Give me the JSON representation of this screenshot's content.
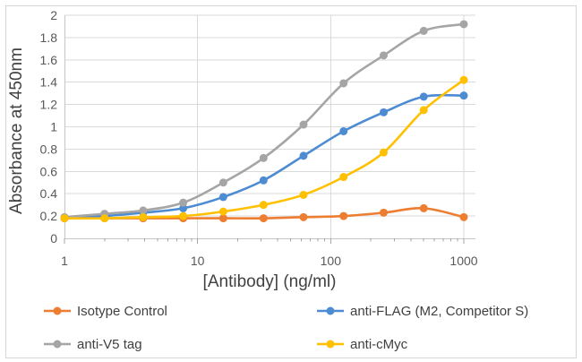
{
  "chart_data": {
    "type": "line",
    "title": "",
    "xlabel": "[Antibody] (ng/ml)",
    "ylabel": "Absorbance at 450nm",
    "x_scale": "log",
    "xlim": [
      1,
      1000
    ],
    "ylim": [
      0,
      2
    ],
    "grid": true,
    "legend_position": "bottom",
    "x_ticks": [
      {
        "value": 1,
        "label": "1"
      },
      {
        "value": 10,
        "label": "10"
      },
      {
        "value": 100,
        "label": "100"
      },
      {
        "value": 1000,
        "label": "1000"
      }
    ],
    "y_ticks": [
      {
        "value": 0,
        "label": "0"
      },
      {
        "value": 0.2,
        "label": "0.2"
      },
      {
        "value": 0.4,
        "label": "0.4"
      },
      {
        "value": 0.6,
        "label": "0.6"
      },
      {
        "value": 0.8,
        "label": "0.8"
      },
      {
        "value": 1,
        "label": "1"
      },
      {
        "value": 1.2,
        "label": "1.2"
      },
      {
        "value": 1.4,
        "label": "1.4"
      },
      {
        "value": 1.6,
        "label": "1.6"
      },
      {
        "value": 1.8,
        "label": "1.8"
      },
      {
        "value": 2,
        "label": "2"
      }
    ],
    "x": [
      1,
      2,
      3.9,
      7.8,
      15.6,
      31.3,
      62.5,
      125,
      250,
      500,
      1000
    ],
    "series": [
      {
        "name": "Isotype Control",
        "color": "#ED7D31",
        "values": [
          0.18,
          0.18,
          0.18,
          0.18,
          0.18,
          0.18,
          0.19,
          0.2,
          0.23,
          0.27,
          0.19
        ]
      },
      {
        "name": "anti-FLAG (M2, Competitor S)",
        "color": "#4D8BD2",
        "values": [
          0.18,
          0.2,
          0.23,
          0.27,
          0.37,
          0.52,
          0.74,
          0.96,
          1.13,
          1.27,
          1.28
        ]
      },
      {
        "name": "anti-V5 tag",
        "color": "#A5A5A5",
        "values": [
          0.19,
          0.22,
          0.25,
          0.32,
          0.5,
          0.72,
          1.02,
          1.39,
          1.64,
          1.86,
          1.92
        ]
      },
      {
        "name": "anti-cMyc",
        "color": "#FFC000",
        "values": [
          0.18,
          0.18,
          0.19,
          0.2,
          0.24,
          0.3,
          0.39,
          0.55,
          0.77,
          1.15,
          1.42
        ]
      }
    ]
  },
  "colors": {
    "gridline": "#DADADA",
    "axis_line": "#C6C6C6",
    "tick_mark": "#A6A6A6",
    "axis_text": "#595959",
    "title_text": "#414141",
    "border": "#D6D6D6",
    "background": "#FFFFFF"
  }
}
